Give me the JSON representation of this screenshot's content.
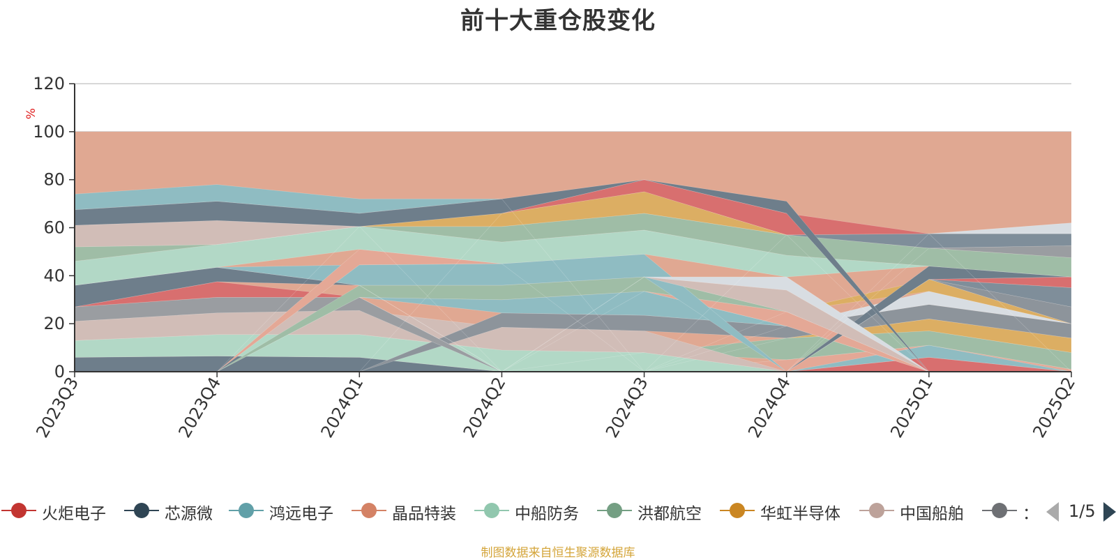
{
  "chart_data": {
    "type": "area",
    "title": "前十大重仓股变化",
    "ylabel": "%",
    "ylim": [
      0,
      120
    ],
    "yticks": [
      0,
      20,
      40,
      60,
      80,
      100,
      120
    ],
    "categories": [
      "2023Q3",
      "2023Q4",
      "2024Q1",
      "2024Q2",
      "2024Q3",
      "2024Q4",
      "2025Q1",
      "2025Q2"
    ],
    "background_band": {
      "value": 100,
      "color": "#e0a892"
    },
    "bands": [
      {
        "color": "#6e7e8b",
        "lower": [
          0,
          0,
          0,
          0,
          0,
          0,
          0,
          0
        ],
        "upper": [
          6,
          6.5,
          6,
          0,
          0,
          0,
          0,
          0
        ]
      },
      {
        "color": "#e4a896",
        "lower": [
          0,
          0,
          0,
          0,
          0,
          0,
          0,
          0
        ],
        "upper": [
          0,
          0,
          0,
          0,
          0,
          5,
          11,
          1
        ]
      },
      {
        "color": "#d86f6f",
        "lower": [
          0,
          0,
          0,
          0,
          0,
          0,
          0,
          0
        ],
        "upper": [
          0,
          0,
          0,
          0,
          0,
          0,
          6,
          0
        ]
      },
      {
        "color": "#8fbcc2",
        "lower": [
          0,
          0,
          0,
          0,
          0,
          0,
          6,
          0
        ],
        "upper": [
          0,
          0,
          0,
          0,
          0,
          0,
          11,
          0
        ]
      },
      {
        "color": "#b2d8c6",
        "lower": [
          6,
          6.5,
          6,
          0,
          0,
          0,
          0,
          0
        ],
        "upper": [
          13,
          15.5,
          15.5,
          9,
          8,
          0,
          0,
          0
        ]
      },
      {
        "color": "#9fbda6",
        "lower": [
          0,
          0,
          0,
          0,
          8,
          5,
          11,
          1
        ],
        "upper": [
          0,
          0,
          0,
          0,
          8,
          14,
          17,
          8
        ]
      },
      {
        "color": "#dcae63",
        "lower": [
          0,
          0,
          0,
          0,
          0,
          14,
          17,
          8
        ],
        "upper": [
          0,
          0,
          0,
          0,
          0,
          14,
          22,
          14
        ]
      },
      {
        "color": "#d1bdb7",
        "lower": [
          13,
          15.5,
          15.5,
          9,
          8,
          0,
          0,
          0
        ],
        "upper": [
          21,
          24.5,
          25.5,
          18.5,
          17,
          0,
          0,
          0
        ]
      },
      {
        "color": "#8d949b",
        "lower": [
          0,
          0,
          0,
          18.5,
          17,
          14,
          22,
          14
        ],
        "upper": [
          0,
          0,
          0,
          24.5,
          23.5,
          19,
          28,
          20
        ]
      },
      {
        "color": "#9a9da1",
        "lower": [
          21,
          24.5,
          25.5,
          0,
          0,
          0,
          0,
          0
        ],
        "upper": [
          27,
          31,
          31,
          0,
          0,
          0,
          0,
          0
        ]
      },
      {
        "color": "#d86f6f",
        "lower": [
          27,
          31,
          31,
          0,
          0,
          0,
          0,
          0
        ],
        "upper": [
          27,
          37.5,
          31,
          0,
          0,
          0,
          0,
          0
        ]
      },
      {
        "color": "#d8dde2",
        "lower": [
          0,
          0,
          0,
          0,
          0,
          19,
          28,
          20
        ],
        "upper": [
          0,
          0,
          0,
          0,
          0,
          19,
          33.5,
          20
        ]
      },
      {
        "color": "#8fbcc2",
        "lower": [
          0,
          0,
          31,
          24.5,
          23.5,
          19,
          0,
          0
        ],
        "upper": [
          0,
          0,
          31,
          30,
          33.5,
          19,
          0,
          0
        ]
      },
      {
        "color": "#e4a896",
        "lower": [
          0,
          0,
          0,
          0,
          33.5,
          19,
          0,
          0
        ],
        "upper": [
          0,
          0,
          0,
          0,
          33.5,
          25,
          0,
          0
        ]
      },
      {
        "color": "#dcae63",
        "lower": [
          0,
          0,
          0,
          0,
          0,
          25,
          33.5,
          20
        ],
        "upper": [
          0,
          0,
          0,
          0,
          0,
          25,
          38.5,
          20
        ]
      },
      {
        "color": "#9fbda6",
        "lower": [
          0,
          0,
          31,
          30,
          33.5,
          25,
          0,
          0
        ],
        "upper": [
          0,
          0,
          36,
          36,
          39.5,
          25,
          0,
          0
        ]
      },
      {
        "color": "#8d949b",
        "lower": [
          0,
          0,
          0,
          0,
          0,
          0,
          38.5,
          20
        ],
        "upper": [
          0,
          0,
          0,
          0,
          0,
          0,
          38.5,
          27
        ]
      },
      {
        "color": "#7f8e9a",
        "lower": [
          0,
          0,
          0,
          0,
          0,
          0,
          38.5,
          27
        ],
        "upper": [
          0,
          0,
          0,
          0,
          0,
          0,
          38.5,
          35
        ]
      },
      {
        "color": "#d86f6f",
        "lower": [
          0,
          0,
          0,
          0,
          0,
          0,
          38.5,
          35
        ],
        "upper": [
          0,
          0,
          0,
          0,
          0,
          0,
          38.5,
          39.5
        ]
      },
      {
        "color": "#6e7e8b",
        "lower": [
          27,
          37.5,
          36,
          0,
          0,
          0,
          38.5,
          39.5
        ],
        "upper": [
          36,
          43.5,
          36,
          0,
          0,
          0,
          44,
          39.5
        ]
      },
      {
        "color": "#b2d8c6",
        "lower": [
          36,
          43.5,
          36,
          0,
          0,
          0,
          0,
          0
        ],
        "upper": [
          36,
          43.5,
          36,
          0,
          0,
          0,
          0,
          0
        ]
      },
      {
        "color": "#8fbcc2",
        "lower": [
          36,
          43.5,
          36,
          36,
          39.5,
          0,
          0,
          0
        ],
        "upper": [
          36,
          43.5,
          44.5,
          45,
          49,
          0,
          0,
          0
        ]
      },
      {
        "color": "#d1bdb7",
        "lower": [
          0,
          0,
          0,
          0,
          39.5,
          25,
          0,
          0
        ],
        "upper": [
          0,
          0,
          0,
          0,
          39.5,
          34,
          0,
          0
        ]
      },
      {
        "color": "#d8dde2",
        "lower": [
          0,
          0,
          0,
          0,
          39.5,
          34,
          0,
          0
        ],
        "upper": [
          0,
          0,
          0,
          0,
          39.5,
          39.5,
          0,
          0
        ]
      },
      {
        "color": "#e4a896",
        "lower": [
          0,
          0,
          44.5,
          45,
          0,
          0,
          0,
          0
        ],
        "upper": [
          0,
          0,
          51,
          45,
          0,
          0,
          0,
          0
        ]
      },
      {
        "color": "#b2d8c6",
        "lower": [
          36,
          43.5,
          51,
          45,
          49,
          39.5,
          44,
          39.5
        ],
        "upper": [
          46,
          53,
          60.5,
          54,
          59,
          48.5,
          44,
          39.5
        ]
      },
      {
        "color": "#9fbda6",
        "lower": [
          46,
          53,
          60.5,
          54,
          59,
          48.5,
          44,
          39.5
        ],
        "upper": [
          52,
          53,
          60.5,
          60.5,
          66,
          57,
          51.5,
          47.5
        ]
      },
      {
        "color": "#9a9da1",
        "lower": [
          0,
          0,
          0,
          0,
          0,
          0,
          51.5,
          47.5
        ],
        "upper": [
          0,
          0,
          0,
          0,
          0,
          0,
          51.5,
          52.5
        ]
      },
      {
        "color": "#7f8e9a",
        "lower": [
          0,
          0,
          0,
          0,
          0,
          57,
          51.5,
          52.5
        ],
        "upper": [
          0,
          0,
          0,
          0,
          0,
          57,
          57.5,
          57.5
        ]
      },
      {
        "color": "#dcae63",
        "lower": [
          0,
          0,
          60.5,
          60.5,
          66,
          57,
          0,
          0
        ],
        "upper": [
          0,
          0,
          60.5,
          66,
          75,
          57,
          0,
          0
        ]
      },
      {
        "color": "#d1bdb7",
        "lower": [
          52,
          53,
          60.5,
          0,
          0,
          0,
          0,
          0
        ],
        "upper": [
          61,
          63,
          60.5,
          0,
          0,
          0,
          0,
          0
        ]
      },
      {
        "color": "#d86f6f",
        "lower": [
          0,
          0,
          0,
          66,
          75,
          57,
          57.5,
          0
        ],
        "upper": [
          0,
          0,
          0,
          66,
          80,
          66,
          57.5,
          0
        ]
      },
      {
        "color": "#6e7e8b",
        "lower": [
          61,
          63,
          60.5,
          66,
          80,
          66,
          0,
          0
        ],
        "upper": [
          67.5,
          71,
          66,
          72,
          80,
          71,
          0,
          0
        ]
      },
      {
        "color": "#8fbcc2",
        "lower": [
          67.5,
          71,
          66,
          72,
          0,
          0,
          0,
          0
        ],
        "upper": [
          74,
          78,
          72,
          72,
          0,
          0,
          0,
          0
        ]
      },
      {
        "color": "#d8dde2",
        "lower": [
          0,
          0,
          0,
          0,
          0,
          0,
          57.5,
          57.5
        ],
        "upper": [
          0,
          0,
          0,
          0,
          0,
          0,
          57.5,
          62
        ]
      }
    ],
    "legend": {
      "placement": "bottom",
      "items": [
        {
          "name": "火炬电子",
          "color": "#c23531"
        },
        {
          "name": "芯源微",
          "color": "#2f4554"
        },
        {
          "name": "鸿远电子",
          "color": "#61a0a8"
        },
        {
          "name": "晶品特装",
          "color": "#d48265"
        },
        {
          "name": "中船防务",
          "color": "#91c7ae"
        },
        {
          "name": "洪都航空",
          "color": "#749f83"
        },
        {
          "name": "华虹半导体",
          "color": "#ca8622"
        },
        {
          "name": "中国船舶",
          "color": "#bda29a"
        },
        {
          "name": "：",
          "color": "#6e7074"
        }
      ],
      "page": "1/5"
    }
  },
  "source_note": "制图数据来自恒生聚源数据库"
}
